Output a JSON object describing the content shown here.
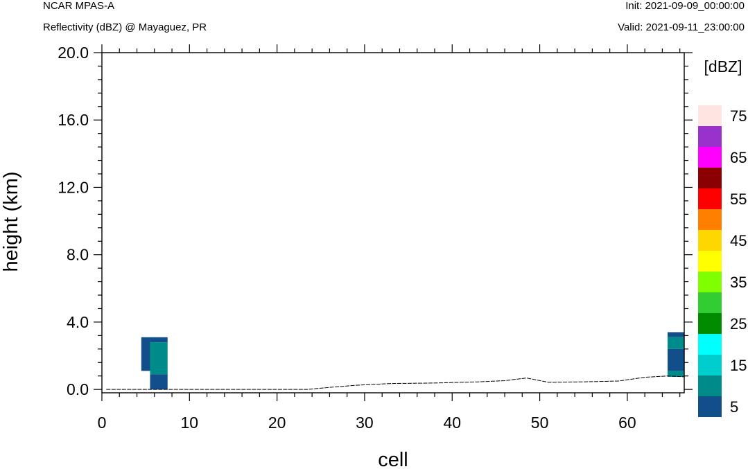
{
  "header": {
    "model": "NCAR MPAS-A",
    "field": "Reflectivity (dBZ) @ Mayaguez, PR",
    "init": "Init: 2021-09-09_00:00:00",
    "valid": "Valid: 2021-09-11_23:00:00"
  },
  "chart_data": {
    "type": "heatmap",
    "title": "Reflectivity (dBZ) @ Mayaguez, PR",
    "xlabel": "cell",
    "ylabel": "height (km)",
    "xlim": [
      0,
      66.5
    ],
    "ylim": [
      -0.2,
      20.0
    ],
    "x_ticks": [
      0,
      10,
      20,
      30,
      40,
      50,
      60
    ],
    "x_tick_labels": [
      "0",
      "10",
      "20",
      "30",
      "40",
      "50",
      "60"
    ],
    "y_ticks": [
      0,
      4,
      8,
      12,
      16,
      20
    ],
    "y_tick_labels": [
      "0.0",
      "4.0",
      "8.0",
      "12.0",
      "16.0",
      "20.0"
    ],
    "colorbar": {
      "title": "[dBZ]",
      "levels": [
        5,
        10,
        15,
        20,
        25,
        30,
        35,
        40,
        45,
        50,
        55,
        60,
        65,
        70,
        75
      ],
      "labels": [
        "5",
        "15",
        "25",
        "35",
        "45",
        "55",
        "65",
        "75"
      ],
      "colors": [
        "#124e8a",
        "#008b8b",
        "#00cdcd",
        "#00ffff",
        "#008b00",
        "#32cd32",
        "#7fff00",
        "#ffff00",
        "#ffd700",
        "#ff7f00",
        "#ff0000",
        "#8b0000",
        "#ff00ff",
        "#9932cc",
        "#ffe4e1"
      ]
    },
    "cells": [
      {
        "x0": 4.5,
        "x1": 5.5,
        "y0": 1.1,
        "y1": 3.1,
        "level": 5
      },
      {
        "x0": 5.5,
        "x1": 7.5,
        "y0": 2.8,
        "y1": 3.1,
        "level": 5
      },
      {
        "x0": 5.5,
        "x1": 7.5,
        "y0": 0.9,
        "y1": 2.8,
        "level": 10
      },
      {
        "x0": 5.5,
        "x1": 7.5,
        "y0": 0.0,
        "y1": 0.9,
        "level": 5
      },
      {
        "x0": 64.6,
        "x1": 66.5,
        "y0": 3.1,
        "y1": 3.4,
        "level": 5
      },
      {
        "x0": 64.6,
        "x1": 66.5,
        "y0": 2.4,
        "y1": 3.1,
        "level": 10
      },
      {
        "x0": 64.6,
        "x1": 66.5,
        "y0": 1.1,
        "y1": 2.4,
        "level": 5
      },
      {
        "x0": 64.6,
        "x1": 66.5,
        "y0": 0.75,
        "y1": 1.1,
        "level": 10
      }
    ],
    "terrain": {
      "x": [
        0.5,
        23.5,
        26,
        29,
        33,
        38,
        43,
        46,
        48.5,
        51,
        55,
        59,
        62,
        64.6,
        66.5
      ],
      "y": [
        0.0,
        0.0,
        0.12,
        0.25,
        0.35,
        0.38,
        0.45,
        0.52,
        0.68,
        0.42,
        0.45,
        0.5,
        0.72,
        0.8,
        0.75
      ]
    }
  }
}
